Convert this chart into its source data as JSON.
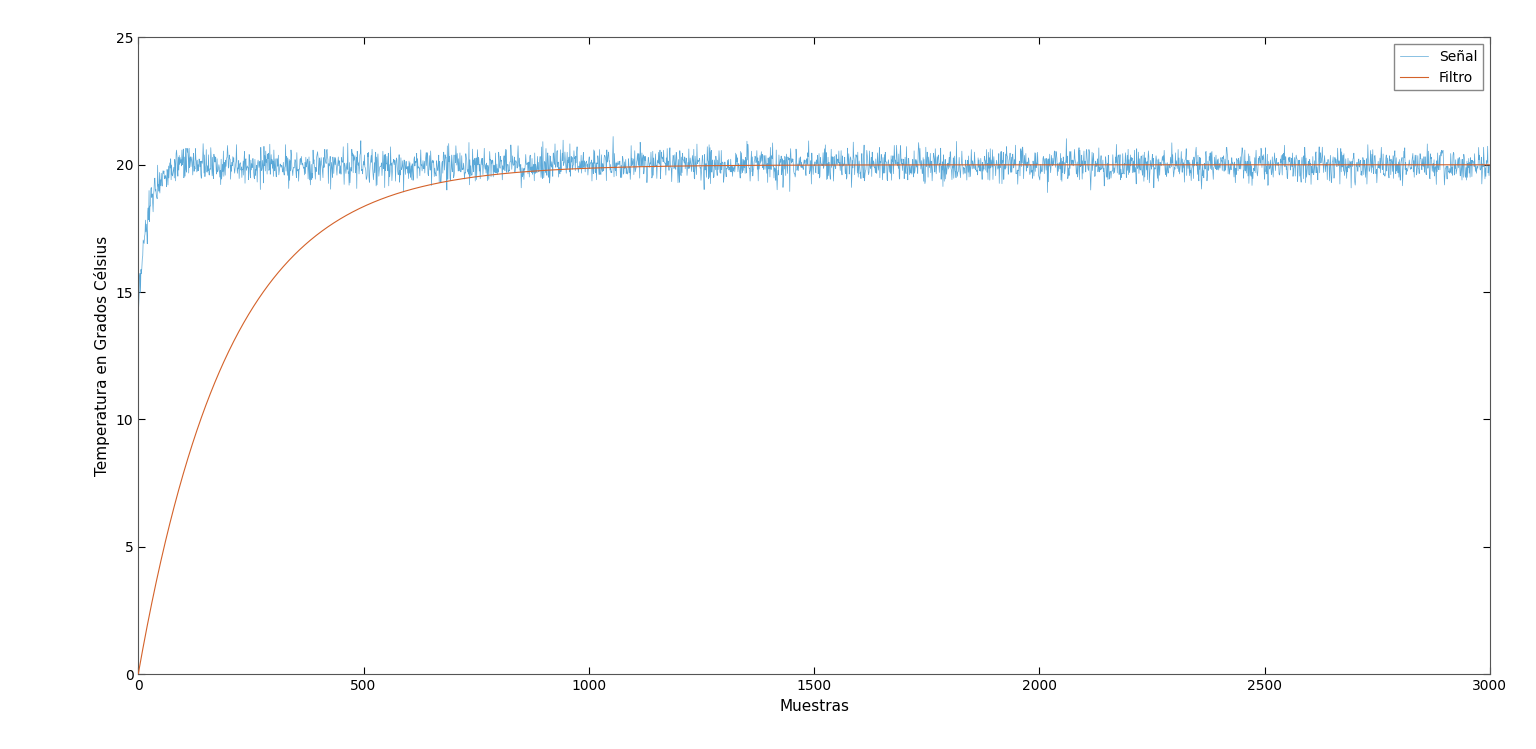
{
  "title": "",
  "xlabel": "Muestras",
  "ylabel": "Temperatura en Grados Célsius",
  "xlim": [
    0,
    3000
  ],
  "ylim": [
    0,
    25
  ],
  "yticks": [
    0,
    5,
    10,
    15,
    20,
    25
  ],
  "xticks": [
    0,
    500,
    1000,
    1500,
    2000,
    2500,
    3000
  ],
  "n_samples": 3000,
  "steady_state": 20.0,
  "noise_std": 0.35,
  "signal_tau": 20,
  "signal_start": 14.0,
  "filter_tau": 200,
  "signal_color": "#5aa8d8",
  "filter_color": "#d4622a",
  "signal_label": "Señal",
  "filter_label": "Filtro",
  "signal_linewidth": 0.5,
  "filter_linewidth": 0.8,
  "background_color": "#ffffff",
  "legend_loc": "upper right",
  "fig_width": 15.36,
  "fig_height": 7.49,
  "dpi": 100
}
